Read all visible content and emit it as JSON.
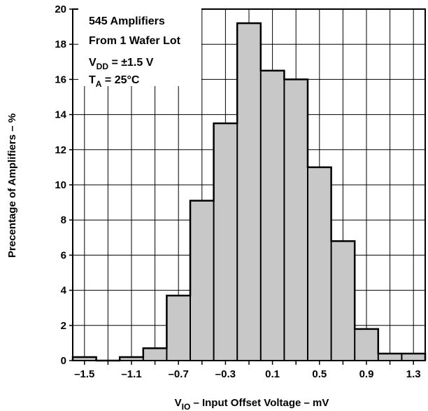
{
  "chart_data": {
    "type": "bar",
    "subtype": "histogram",
    "xlabel": {
      "main": "V",
      "sub": "IO",
      "rest": " – Input Offset Voltage – mV"
    },
    "ylabel": "Precentage of Amplifiers – %",
    "annotation": {
      "line1": "545 Amplifiers",
      "line2": "From 1 Wafer Lot",
      "line3": {
        "main": "V",
        "sub": "DD",
        "rest": " = ±1.5 V"
      },
      "line4": {
        "main": "T",
        "sub": "A",
        "rest": " = 25°C"
      },
      "placement": "top-left"
    },
    "xlim": [
      -1.6,
      1.4
    ],
    "ylim": [
      0,
      20
    ],
    "bin_width": 0.2,
    "bin_starts": [
      -1.6,
      -1.4,
      -1.2,
      -1.0,
      -0.8,
      -0.6,
      -0.4,
      -0.2,
      0.0,
      0.2,
      0.4,
      0.6,
      0.8,
      1.0,
      1.2
    ],
    "values": [
      0.2,
      0.0,
      0.2,
      0.7,
      3.7,
      9.1,
      13.5,
      19.2,
      16.5,
      16.0,
      11.0,
      6.8,
      1.8,
      0.4,
      0.4
    ],
    "x_ticks": [
      -1.5,
      -1.3,
      -1.1,
      -0.9,
      -0.7,
      -0.5,
      -0.3,
      -0.1,
      0.1,
      0.3,
      0.5,
      0.7,
      0.9,
      1.1,
      1.3
    ],
    "x_tick_labels": [
      "–1.5",
      "–1.1",
      "–0.7",
      "–0.3",
      "0.1",
      "0.5",
      "0.9",
      "1.3"
    ],
    "x_tick_label_values": [
      -1.5,
      -1.1,
      -0.7,
      -0.3,
      0.1,
      0.5,
      0.9,
      1.3
    ],
    "y_ticks": [
      0,
      2,
      4,
      6,
      8,
      10,
      12,
      14,
      16,
      18,
      20
    ],
    "y_tick_labels": [
      "0",
      "2",
      "4",
      "6",
      "8",
      "10",
      "12",
      "14",
      "16",
      "18",
      "20"
    ],
    "grid": true,
    "colors": {
      "bar_fill": "#c8c8c8",
      "bar_stroke": "#000000",
      "grid": "#000000"
    }
  }
}
